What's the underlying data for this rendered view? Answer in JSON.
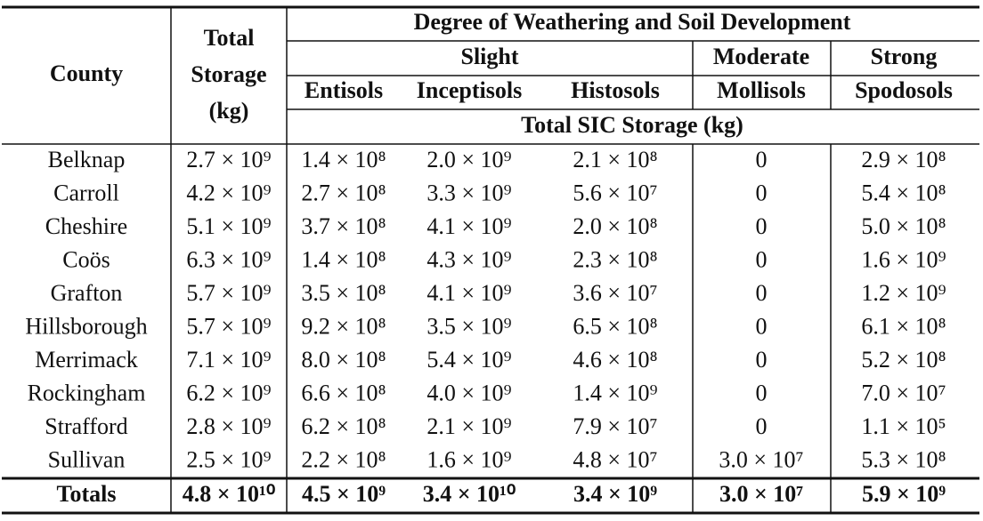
{
  "table": {
    "header": {
      "county": "County",
      "total_storage": [
        "Total",
        "Storage",
        "(kg)"
      ],
      "group_title": "Degree of Weathering and Soil Development",
      "groups": [
        "Slight",
        "Moderate",
        "Strong"
      ],
      "orders": [
        "Entisols",
        "Inceptisols",
        "Histosols",
        "Mollisols",
        "Spodosols"
      ],
      "sub_title": "Total SIC Storage (kg)"
    },
    "rows": [
      [
        "Belknap",
        "2.7 × 10⁹",
        "1.4 × 10⁸",
        "2.0 × 10⁹",
        "2.1 × 10⁸",
        "0",
        "2.9 × 10⁸"
      ],
      [
        "Carroll",
        "4.2 × 10⁹",
        "2.7 × 10⁸",
        "3.3 × 10⁹",
        "5.6 × 10⁷",
        "0",
        "5.4 × 10⁸"
      ],
      [
        "Cheshire",
        "5.1 × 10⁹",
        "3.7 × 10⁸",
        "4.1 × 10⁹",
        "2.0 × 10⁸",
        "0",
        "5.0 × 10⁸"
      ],
      [
        "Coös",
        "6.3 × 10⁹",
        "1.4 × 10⁸",
        "4.3 × 10⁹",
        "2.3 × 10⁸",
        "0",
        "1.6 × 10⁹"
      ],
      [
        "Grafton",
        "5.7 × 10⁹",
        "3.5 × 10⁸",
        "4.1 × 10⁹",
        "3.6 × 10⁷",
        "0",
        "1.2 × 10⁹"
      ],
      [
        "Hillsborough",
        "5.7 × 10⁹",
        "9.2 × 10⁸",
        "3.5 × 10⁹",
        "6.5 × 10⁸",
        "0",
        "6.1 × 10⁸"
      ],
      [
        "Merrimack",
        "7.1 × 10⁹",
        "8.0 × 10⁸",
        "5.4 × 10⁹",
        "4.6 × 10⁸",
        "0",
        "5.2 × 10⁸"
      ],
      [
        "Rockingham",
        "6.2 × 10⁹",
        "6.6 × 10⁸",
        "4.0 × 10⁹",
        "1.4 × 10⁹",
        "0",
        "7.0 × 10⁷"
      ],
      [
        "Strafford",
        "2.8 × 10⁹",
        "6.2 × 10⁸",
        "2.1 × 10⁹",
        "7.9 × 10⁷",
        "0",
        "1.1 × 10⁵"
      ],
      [
        "Sullivan",
        "2.5 × 10⁹",
        "2.2 × 10⁸",
        "1.6 × 10⁹",
        "4.8 × 10⁷",
        "3.0 × 10⁷",
        "5.3 × 10⁸"
      ]
    ],
    "totals": [
      "Totals",
      "4.8 × 10¹⁰",
      "4.5 × 10⁹",
      "3.4 × 10¹⁰",
      "3.4 × 10⁹",
      "3.0 × 10⁷",
      "5.9 × 10⁹"
    ]
  }
}
